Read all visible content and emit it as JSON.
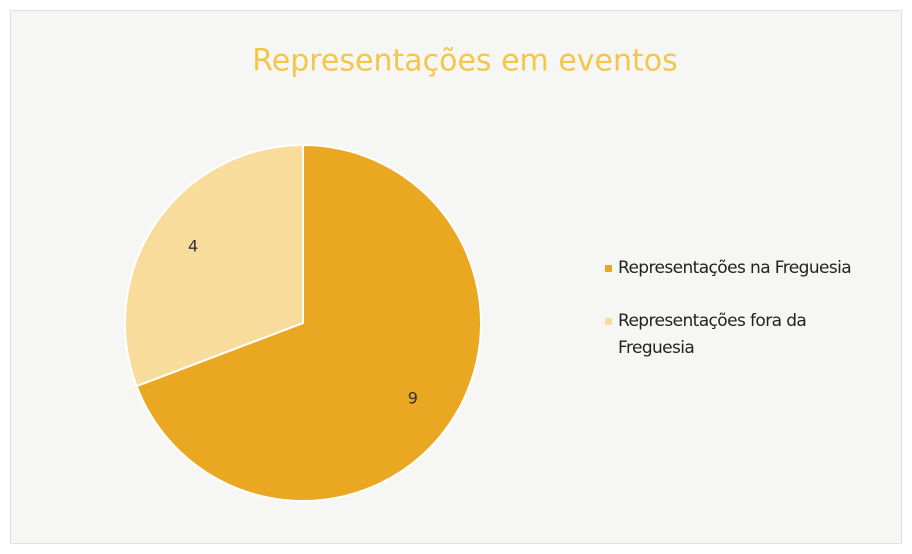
{
  "chart_data": {
    "type": "pie",
    "title": "Representações em eventos",
    "categories": [
      "Representações na Freguesia",
      "Representações fora da Freguesia"
    ],
    "values": [
      9,
      4
    ],
    "colors": [
      "#e9a722",
      "#f8dc9c"
    ]
  }
}
